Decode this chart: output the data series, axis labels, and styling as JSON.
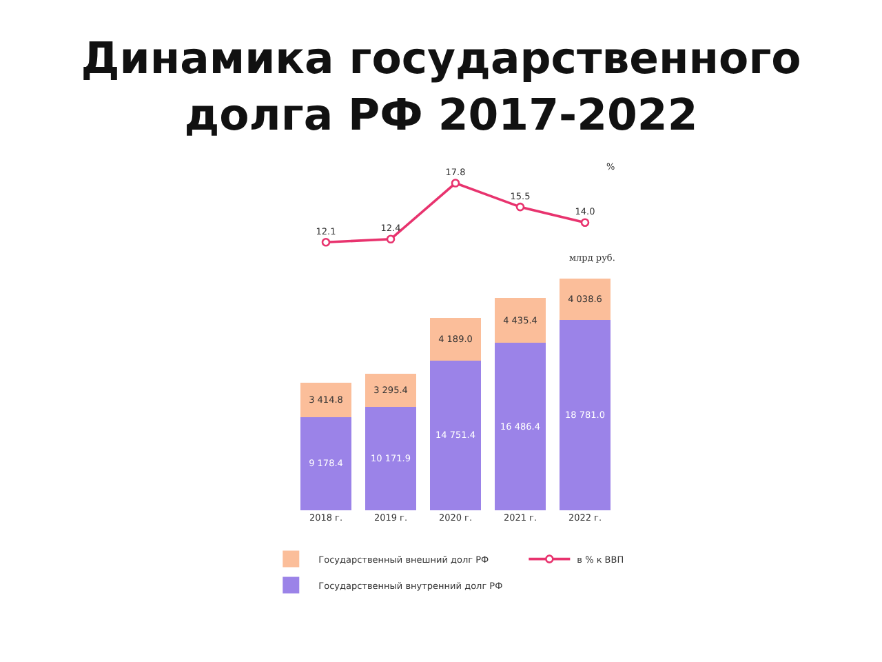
{
  "chart_data": [
    {
      "type": "line",
      "title": "Динамика государственного\nдолга РФ 2017-2022",
      "categories": [
        "2018 г.",
        "2019 г.",
        "2020 г.",
        "2021 г.",
        "2022 г."
      ],
      "series": [
        {
          "name": "в % к ВВП",
          "color": "#e8336e",
          "values": [
            12.1,
            12.4,
            17.8,
            15.5,
            14.0
          ],
          "value_labels": [
            "12.1",
            "12.4",
            "17.8",
            "15.5",
            "14.0"
          ]
        }
      ],
      "ylabel": "%",
      "tick_labels": false,
      "marker": "circle",
      "line_style": "solid",
      "legend": "bottom"
    },
    {
      "type": "bar",
      "categories": [
        "2018 г.",
        "2019 г.",
        "2020 г.",
        "2021 г.",
        "2022 г."
      ],
      "series": [
        {
          "name": "Государственный внутренний долг РФ",
          "color": "#9b83e8",
          "values": [
            9178.4,
            10171.9,
            14751.4,
            16486.4,
            18781.0
          ],
          "value_labels": [
            "9 178.4",
            "10 171.9",
            "14 751.4",
            "16 486.4",
            "18 781.0"
          ]
        },
        {
          "name": "Государственный внешний долг РФ",
          "color": "#fbbe9a",
          "values": [
            3414.8,
            3295.4,
            4189.0,
            4435.4,
            4038.6
          ],
          "value_labels": [
            "3 414.8",
            "3 295.4",
            "4 189.0",
            "4 435.4",
            "4 038.6"
          ]
        }
      ],
      "stacked": true,
      "ylabel": "млрд руб.",
      "tick_labels": "x",
      "legend": "bottom"
    }
  ]
}
